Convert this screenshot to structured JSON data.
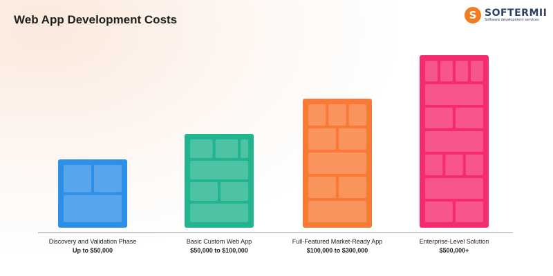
{
  "title": "Web App Development Costs",
  "logo": {
    "name": "SOFTERMII",
    "tagline": "Software development services",
    "letter": "S"
  },
  "chart_data": {
    "type": "bar",
    "categories": [
      "Discovery and Validation Phase",
      "Basic Custom Web App",
      "Full-Featured Market-Ready App",
      "Enterprise-Level Solution"
    ],
    "value_labels": [
      "Up to $50,000",
      "$50,000 to $100,000",
      "$100,000 to $300,000",
      "$500,000+"
    ],
    "values": [
      50000,
      100000,
      300000,
      500000
    ],
    "colors": [
      "#2e8fe6",
      "#22b38f",
      "#f97a35",
      "#f52b6e"
    ],
    "grid": false,
    "legend": "none"
  }
}
